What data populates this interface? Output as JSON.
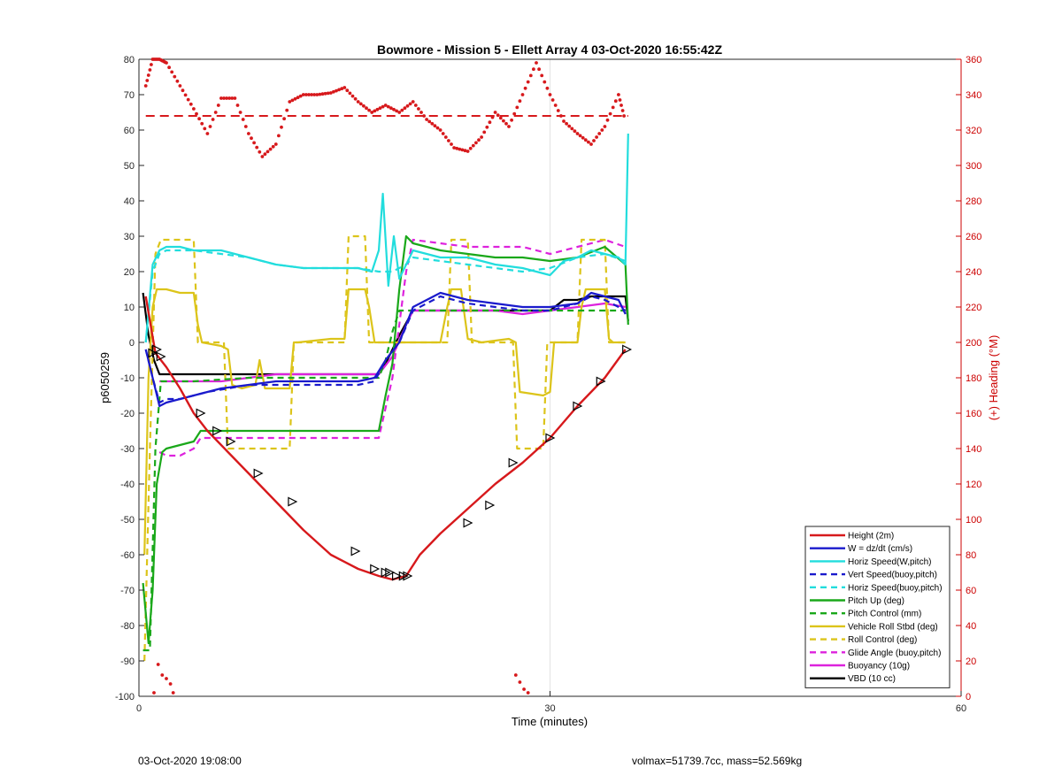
{
  "chart_data": {
    "type": "line",
    "title": "Bowmore - Mission 5 - Ellett Array 4 03-Oct-2020 16:55:42Z",
    "xlabel": "Time (minutes)",
    "ylabel_left": "p6050259",
    "ylabel_right": "(+) Heading (°M)",
    "xlim": [
      0,
      60
    ],
    "ylim_left": [
      -100,
      80
    ],
    "ylim_right": [
      0,
      360
    ],
    "x_ticks": [
      0,
      30,
      60
    ],
    "y_ticks_left": [
      -100,
      -90,
      -80,
      -70,
      -60,
      -50,
      -40,
      -30,
      -20,
      -10,
      0,
      10,
      20,
      30,
      40,
      50,
      60,
      70,
      80
    ],
    "y_ticks_right": [
      0,
      20,
      40,
      60,
      80,
      100,
      120,
      140,
      160,
      180,
      200,
      220,
      240,
      260,
      280,
      300,
      320,
      340,
      360
    ],
    "grid": "x-only",
    "legend_position": "bottom-right",
    "colors": {
      "red": "#d7191c",
      "blue": "#1a1acc",
      "cyan": "#22dddd",
      "green": "#1aa81a",
      "yellow": "#dcc41a",
      "magenta": "#dd22dd",
      "black": "#000000",
      "axis_right": "#cc0000"
    },
    "series": [
      {
        "name": "Height (2m)",
        "color": "red",
        "style": "solid",
        "x": [
          0.5,
          1.2,
          2,
          3,
          4,
          5,
          6,
          8,
          10,
          12,
          14,
          16,
          17.5,
          18.5,
          19.5,
          20.5,
          22,
          24,
          26,
          28,
          30,
          32,
          34,
          35.5
        ],
        "y": [
          13,
          -3,
          -7,
          -13,
          -20,
          -25,
          -29,
          -37,
          -45,
          -53,
          -60,
          -64,
          -66,
          -67,
          -66,
          -60,
          -54,
          -47,
          -40,
          -34,
          -27,
          -18,
          -10,
          -2
        ]
      },
      {
        "name": "W = dz/dt (cm/s)",
        "color": "blue",
        "style": "solid",
        "x": [
          0.5,
          1,
          1.5,
          2,
          3,
          5,
          6,
          8,
          10,
          12,
          14,
          16,
          17.2,
          18,
          19,
          20,
          22,
          24,
          26,
          28,
          30,
          32,
          33,
          34,
          35,
          35.5
        ],
        "y": [
          -2,
          -10,
          -18,
          -17,
          -16,
          -14,
          -13,
          -12,
          -11,
          -11,
          -11,
          -11,
          -10,
          -5,
          0,
          10,
          14,
          12,
          11,
          10,
          10,
          11,
          14,
          13,
          12,
          8
        ]
      },
      {
        "name": "Horiz Speed(W,pitch)",
        "color": "cyan",
        "style": "solid",
        "x": [
          0.5,
          1,
          1.5,
          2,
          3,
          4,
          6,
          8,
          10,
          12,
          14,
          16,
          17,
          17.5,
          17.8,
          18.2,
          18.6,
          19,
          20,
          22,
          24,
          26,
          28,
          30,
          31,
          32,
          33,
          34,
          35,
          35.5,
          35.7
        ],
        "y": [
          0,
          22,
          26,
          27,
          27,
          26,
          26,
          24,
          22,
          21,
          21,
          21,
          20,
          26,
          42,
          16,
          30,
          18,
          26,
          24,
          24,
          22,
          21,
          19,
          23,
          24,
          26,
          25,
          24,
          22,
          59
        ]
      },
      {
        "name": "Vert Speed(buoy,pitch)",
        "color": "blue",
        "style": "dashed",
        "x": [
          0.5,
          1,
          1.5,
          2,
          3,
          5,
          8,
          10,
          12,
          14,
          16,
          17.2,
          18,
          19,
          20,
          22,
          24,
          26,
          28,
          30,
          32,
          33,
          34,
          35.5
        ],
        "y": [
          -2,
          -10,
          -17,
          -16,
          -16,
          -14,
          -12,
          -12,
          -12,
          -12,
          -12,
          -11,
          -5,
          0,
          9,
          13,
          11,
          10,
          9,
          9,
          11,
          13,
          12,
          9
        ]
      },
      {
        "name": "Horiz Speed(buoy,pitch)",
        "color": "cyan",
        "style": "dashed",
        "x": [
          0.5,
          1,
          1.5,
          2,
          4,
          6,
          8,
          10,
          12,
          14,
          16,
          17.5,
          18.5,
          19.5,
          20,
          22,
          24,
          26,
          28,
          30,
          32,
          34,
          35.5
        ],
        "y": [
          0,
          20,
          25,
          26,
          26,
          25,
          24,
          22,
          21,
          21,
          21,
          20,
          20,
          22,
          24,
          23,
          22,
          21,
          20,
          21,
          24,
          25,
          23
        ]
      },
      {
        "name": "Pitch Up (deg)",
        "color": "green",
        "style": "solid",
        "x": [
          0.3,
          0.7,
          1,
          1.3,
          1.7,
          2,
          3,
          4,
          4.5,
          6,
          8,
          10,
          12,
          14,
          16,
          17.5,
          18,
          18.5,
          19,
          19.5,
          20,
          22,
          24,
          26,
          28,
          30,
          32,
          34,
          35.5,
          35.7
        ],
        "y": [
          -68,
          -85,
          -70,
          -40,
          -31,
          -30,
          -29,
          -28,
          -25,
          -25,
          -25,
          -25,
          -25,
          -25,
          -25,
          -25,
          -15,
          -6,
          15,
          30,
          28,
          26,
          25,
          24,
          24,
          23,
          24,
          27,
          22,
          5
        ]
      },
      {
        "name": "Pitch Control (mm)",
        "color": "green",
        "style": "dashed",
        "x": [
          0.3,
          0.8,
          1.2,
          1.6,
          2,
          4,
          8,
          12,
          16,
          17.5,
          18,
          18.5,
          19,
          20,
          24,
          28,
          30,
          32,
          34,
          35.5
        ],
        "y": [
          -87,
          -87,
          -30,
          -11,
          -11,
          -11,
          -10,
          -10,
          -10,
          -10,
          -5,
          3,
          9,
          9,
          9,
          9,
          9,
          9,
          9,
          9
        ]
      },
      {
        "name": "Vehicle Roll Stbd (deg)",
        "color": "yellow",
        "style": "solid",
        "x": [
          0.4,
          0.7,
          1,
          1.3,
          2,
          3,
          4,
          4.3,
          4.6,
          6,
          6.5,
          6.8,
          7.5,
          8.5,
          8.8,
          9.2,
          11,
          11.3,
          11.6,
          14,
          15,
          15.3,
          16.5,
          16.8,
          17.2,
          19,
          22,
          22.5,
          22.8,
          23.5,
          24,
          25,
          27,
          27.5,
          27.8,
          29.5,
          30,
          30.3,
          32,
          32.3,
          32.6,
          34,
          34.3,
          34.6,
          35.5
        ],
        "y": [
          -60,
          -10,
          10,
          15,
          15,
          14,
          14,
          5,
          0,
          -1,
          -2,
          -12,
          -13,
          -12,
          -5,
          -13,
          -13,
          0,
          0,
          1,
          1,
          15,
          15,
          10,
          0,
          0,
          0,
          10,
          15,
          15,
          1,
          0,
          1,
          0,
          -14,
          -15,
          -14,
          0,
          0,
          10,
          15,
          15,
          1,
          0,
          0
        ]
      },
      {
        "name": "Roll Control (deg)",
        "color": "yellow",
        "style": "dashed",
        "x": [
          0.4,
          0.8,
          1.2,
          1.6,
          4,
          4.3,
          4.6,
          6.2,
          6.5,
          6.8,
          8.5,
          8.8,
          11,
          11.3,
          15,
          15.3,
          16.5,
          16.8,
          19,
          22.5,
          22.8,
          24,
          24.3,
          27.3,
          27.6,
          29.5,
          29.8,
          32,
          32.3,
          34,
          34.3,
          35.5
        ],
        "y": [
          -90,
          -30,
          25,
          29,
          29,
          0,
          0,
          0,
          -30,
          -30,
          -30,
          -30,
          -30,
          0,
          0,
          30,
          30,
          0,
          0,
          0,
          29,
          29,
          0,
          0,
          -30,
          -30,
          0,
          0,
          29,
          29,
          0,
          0
        ]
      },
      {
        "name": "Glide Angle (buoy,pitch)",
        "color": "magenta",
        "style": "dashed",
        "x": [
          1.5,
          2,
          3,
          4,
          4.5,
          6,
          8,
          10,
          12,
          14,
          16,
          17.5,
          18.5,
          19.5,
          20,
          22,
          24,
          26,
          28,
          30,
          32,
          34,
          35.5
        ],
        "y": [
          -31,
          -32,
          -32,
          -30,
          -27,
          -27,
          -27,
          -27,
          -27,
          -27,
          -27,
          -27,
          -10,
          20,
          29,
          28,
          27,
          27,
          27,
          25,
          27,
          29,
          27
        ]
      },
      {
        "name": "Buoyancy (10g)",
        "color": "magenta",
        "style": "solid",
        "x": [
          1.5,
          3,
          6,
          8,
          10,
          12,
          14,
          16,
          17.5,
          18.5,
          19.5,
          20,
          22,
          24,
          26,
          28,
          30,
          32,
          34,
          35.5
        ],
        "y": [
          -11,
          -11,
          -11,
          -10,
          -9,
          -9,
          -9,
          -9,
          -9,
          -4,
          5,
          9,
          9,
          9,
          9,
          8,
          9,
          10,
          11,
          10
        ]
      },
      {
        "name": "VBD (10 cc)",
        "color": "black",
        "style": "solid",
        "x": [
          0.3,
          0.7,
          1.1,
          1.5,
          4,
          8,
          12,
          16,
          17.5,
          18,
          19,
          20,
          22,
          24,
          26,
          28,
          29.5,
          30,
          31,
          32,
          33,
          34,
          35.5,
          35.7
        ],
        "y": [
          14,
          2,
          -5,
          -9,
          -9,
          -9,
          -9,
          -9,
          -9,
          -6,
          2,
          9,
          9,
          9,
          9,
          9,
          9,
          9,
          12,
          12,
          13,
          13,
          13,
          6
        ]
      }
    ],
    "heading": {
      "name": "Heading",
      "axis": "right",
      "color": "red",
      "style": "dotted",
      "mean": 328,
      "x": [
        0.5,
        1,
        1.5,
        2,
        3,
        4,
        5,
        6,
        7,
        8,
        9,
        10,
        11,
        12,
        13,
        14,
        15,
        16,
        17,
        18,
        19,
        20,
        21,
        22,
        23,
        24,
        25,
        26,
        27,
        28,
        29,
        30,
        31,
        32,
        33,
        34,
        35,
        35.5
      ],
      "y": [
        345,
        360,
        360,
        358,
        345,
        332,
        318,
        338,
        338,
        318,
        305,
        312,
        336,
        340,
        340,
        341,
        344,
        336,
        330,
        334,
        330,
        336,
        326,
        320,
        310,
        308,
        316,
        330,
        322,
        340,
        358,
        340,
        325,
        318,
        312,
        322,
        340,
        325
      ]
    },
    "markers": {
      "name": "Height markers",
      "x": [
        1,
        1.3,
        1.6,
        4.5,
        5.7,
        6.7,
        8.7,
        11.2,
        15.8,
        17.2,
        18,
        18.3,
        18.8,
        19.3,
        19.6,
        24,
        25.6,
        27.3,
        30,
        32,
        33.7,
        35.6
      ],
      "y": [
        -3,
        -2,
        -4,
        -20,
        -25,
        -28,
        -37,
        -45,
        -59,
        -64,
        -65,
        -65,
        -66,
        -66,
        -66,
        -51,
        -46,
        -34,
        -27,
        -18,
        -11,
        -2
      ]
    }
  },
  "footer": {
    "left": "03-Oct-2020 19:08:00",
    "right": "volmax=51739.7cc, mass=52.569kg"
  }
}
